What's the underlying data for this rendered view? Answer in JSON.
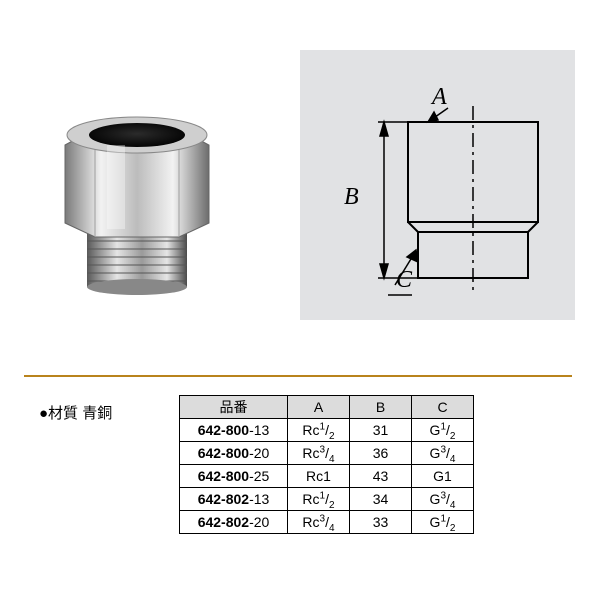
{
  "material_label": "●材質 青銅",
  "diagram": {
    "labels": {
      "a": "A",
      "b": "B",
      "c": "C"
    },
    "panel_bg": "#e1e2e4",
    "line_color": "#000000"
  },
  "divider_color": "#b9831c",
  "table": {
    "header_bg": "#dcdcdc",
    "columns": [
      "品番",
      "A",
      "B",
      "C"
    ],
    "rows": [
      {
        "part_bold": "642-800",
        "part_suffix": "-13",
        "a_prefix": "Rc",
        "a_num": "1",
        "a_den": "2",
        "b": "31",
        "c_prefix": "G",
        "c_num": "1",
        "c_den": "2"
      },
      {
        "part_bold": "642-800",
        "part_suffix": "-20",
        "a_prefix": "Rc",
        "a_num": "3",
        "a_den": "4",
        "b": "36",
        "c_prefix": "G",
        "c_num": "3",
        "c_den": "4"
      },
      {
        "part_bold": "642-800",
        "part_suffix": "-25",
        "a_prefix": "Rc1",
        "a_num": "",
        "a_den": "",
        "b": "43",
        "c_prefix": "G1",
        "c_num": "",
        "c_den": ""
      },
      {
        "part_bold": "642-802",
        "part_suffix": "-13",
        "a_prefix": "Rc",
        "a_num": "1",
        "a_den": "2",
        "b": "34",
        "c_prefix": "G",
        "c_num": "3",
        "c_den": "4"
      },
      {
        "part_bold": "642-802",
        "part_suffix": "-20",
        "a_prefix": "Rc",
        "a_num": "3",
        "a_den": "4",
        "b": "33",
        "c_prefix": "G",
        "c_num": "1",
        "c_den": "2"
      }
    ]
  }
}
